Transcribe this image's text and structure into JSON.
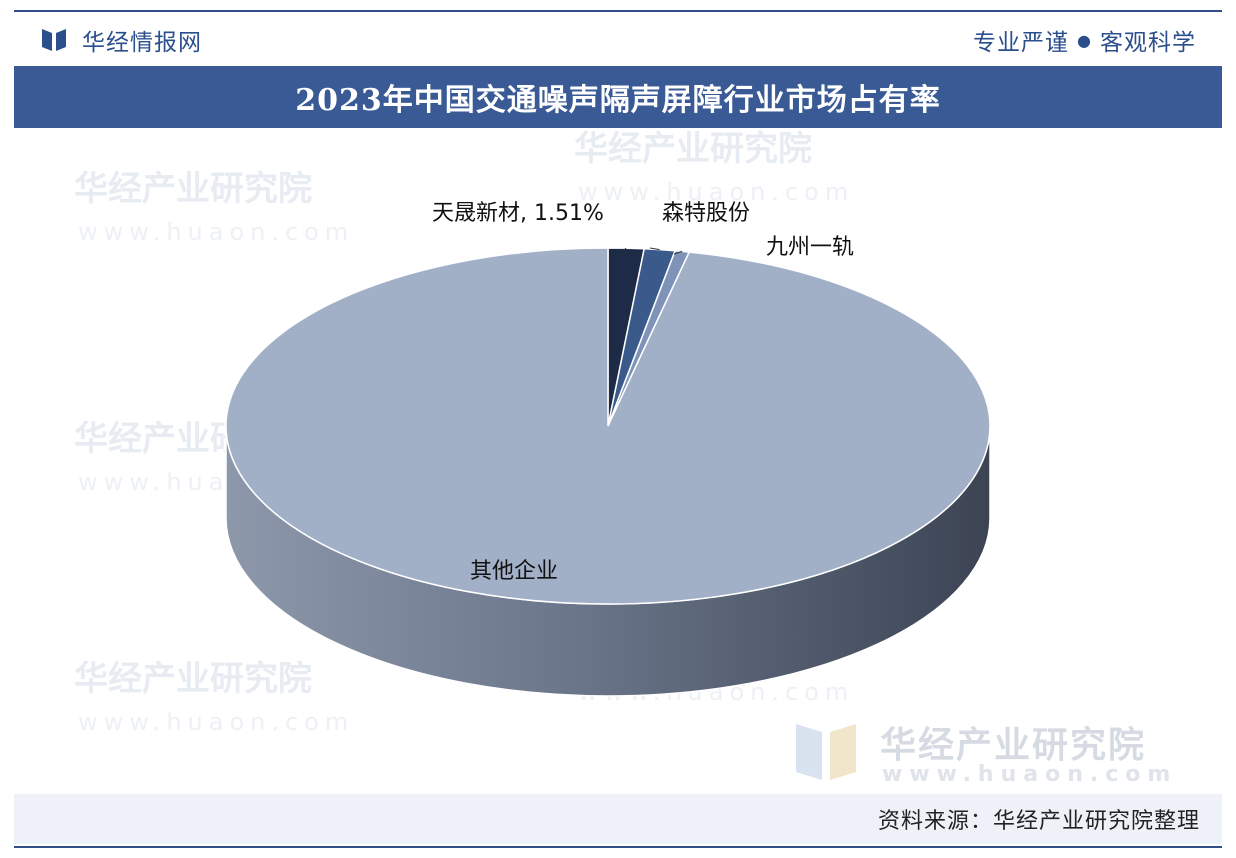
{
  "header": {
    "brand": "华经情报网",
    "slogan_left": "专业严谨",
    "slogan_dot": "●",
    "slogan_right": "客观科学"
  },
  "title": "2023年中国交通噪声隔声屏障行业市场占有率",
  "watermark": {
    "name": "华经产业研究院",
    "url": "www.huaon.com"
  },
  "chart_data": {
    "type": "pie",
    "title": "2023年中国交通噪声隔声屏障行业市场占有率",
    "slices": [
      {
        "label": "天晟新材, 1.51%",
        "value": 1.51,
        "color": "#1d2b47",
        "side": "#161f33"
      },
      {
        "label": "森特股份",
        "value": 1.3,
        "color": "#3a5a8c",
        "side": "#2a4168"
      },
      {
        "label": "九州一轨",
        "value": 0.6,
        "color": "#7f93b8",
        "side": "#5a6a87"
      },
      {
        "label": "其他企业",
        "value": 96.59,
        "color": "#a1afc7",
        "side": "#5f6a7d"
      }
    ]
  },
  "source": "资料来源：华经产业研究院整理",
  "colors": {
    "brand_blue": "#3a5a95",
    "pie_main": "#a1afc7"
  }
}
